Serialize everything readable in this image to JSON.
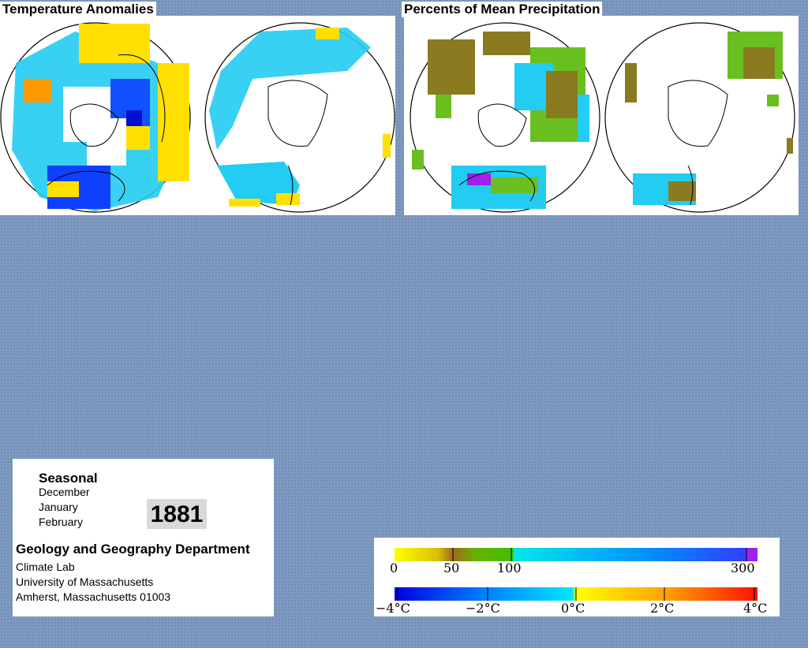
{
  "panels": {
    "temperature": {
      "title": "Temperature Anomalies"
    },
    "precipitation": {
      "title": "Percents of Mean Precipitation"
    }
  },
  "info": {
    "season": "Seasonal",
    "months": [
      "December",
      "January",
      "February"
    ],
    "year": "1881",
    "department": "Geology and Geography Department",
    "lab": "Climate Lab",
    "university": "University of Massachusetts",
    "address": "Amherst, Massachusetts 01003"
  },
  "legend": {
    "precipitation": {
      "ticks": [
        "0",
        "50",
        "100",
        "300"
      ],
      "colors": [
        "#ffff00",
        "#c8a000",
        "#a06a20",
        "#6ab000",
        "#40c000",
        "#00e8e8",
        "#0090ff",
        "#3040ff",
        "#a020f0"
      ]
    },
    "temperature": {
      "ticks": [
        "−4°C",
        "−2°C",
        "0°C",
        "2°C",
        "4°C"
      ],
      "colors": [
        "#0000e0",
        "#0080ff",
        "#00d8ff",
        "#00ffff",
        "#ffff00",
        "#ffc000",
        "#ff7000",
        "#ff2000"
      ]
    }
  },
  "colors": {
    "background": "#7f9ac0",
    "cold": "#1040ff",
    "cyan": "#22ccf2",
    "warm": "#ffe000",
    "dry": "#8a7a20",
    "wet": "#6abf20"
  }
}
